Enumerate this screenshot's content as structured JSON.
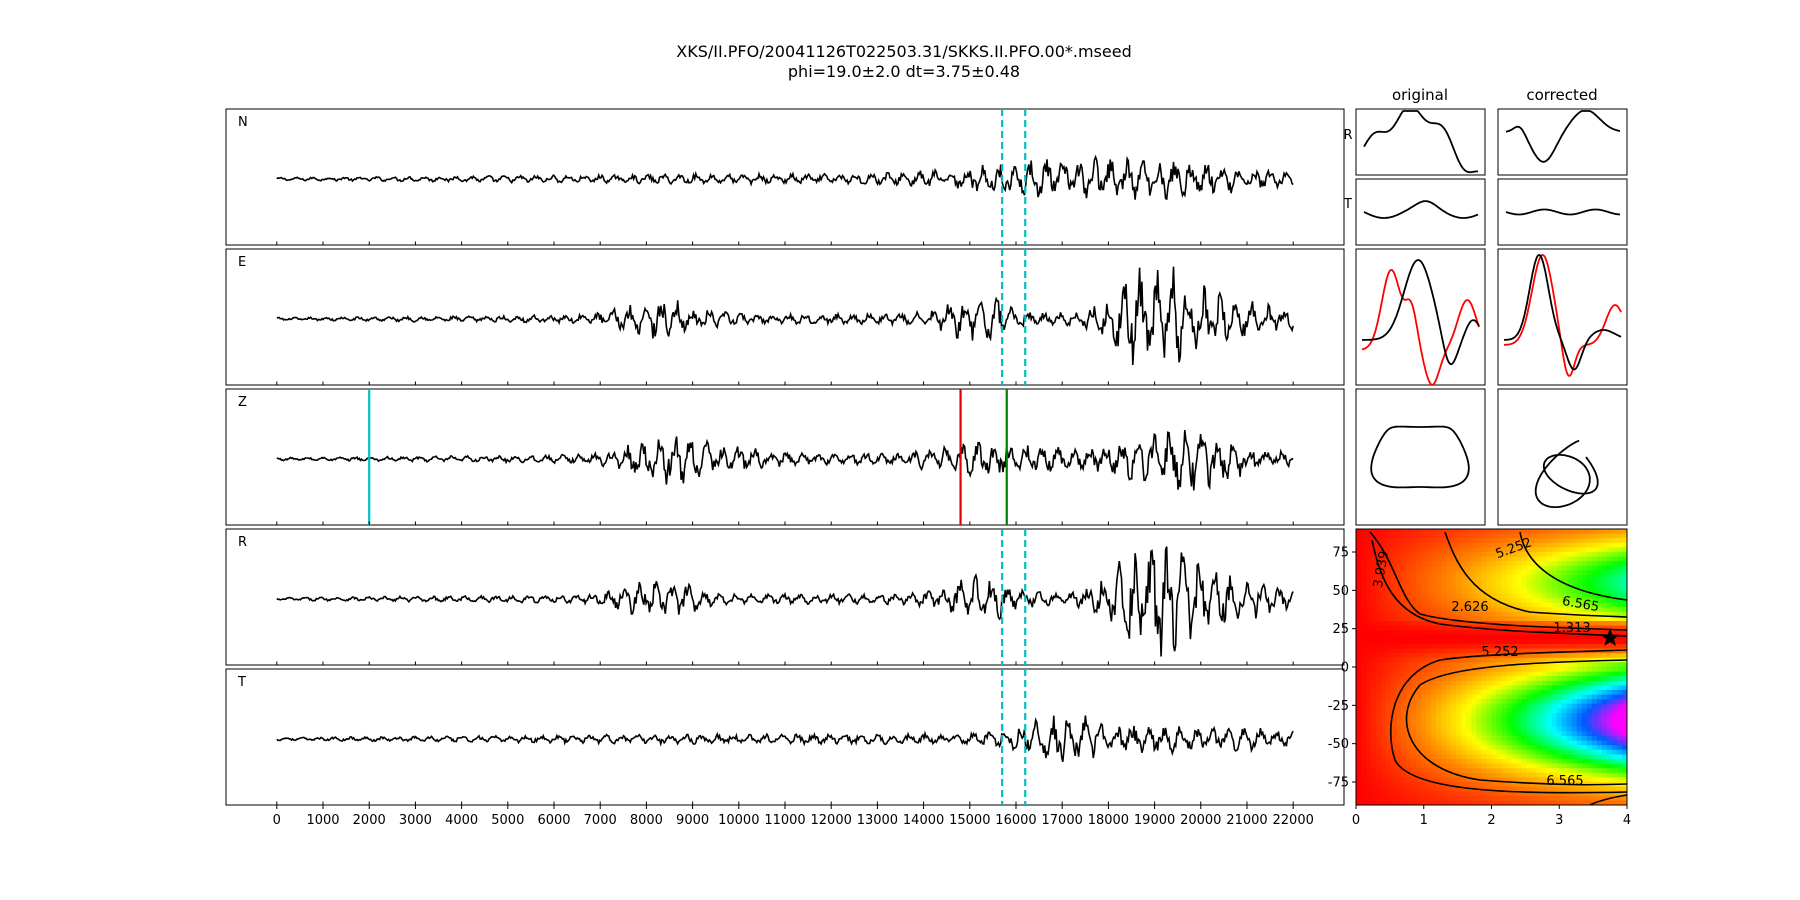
{
  "title": {
    "line1": "XKS/II.PFO/20041126T022503.31/SKKS.II.PFO.00*.mseed",
    "line2": "phi=19.0±2.0 dt=3.75±0.48"
  },
  "colors": {
    "trace": "#000000",
    "window_marker": "#00bfbf",
    "pick_cyan": "#00bfbf",
    "pick_red": "#e00000",
    "pick_green": "#007f00",
    "particle_red": "#ff0000",
    "contour_line": "#000000"
  },
  "chart_data": [
    {
      "type": "line",
      "panels": [
        "N",
        "E",
        "Z",
        "R",
        "T"
      ],
      "x_ticks": [
        0,
        1000,
        2000,
        3000,
        4000,
        5000,
        6000,
        7000,
        8000,
        9000,
        10000,
        11000,
        12000,
        13000,
        14000,
        15000,
        16000,
        17000,
        18000,
        19000,
        20000,
        21000,
        22000
      ],
      "xlim": [
        -1100,
        23100
      ],
      "trace_extent": [
        0,
        22000
      ],
      "window_markers": [
        15700,
        16200
      ],
      "z_picks": [
        {
          "x": 2000,
          "color": "#00bfbf"
        },
        {
          "x": 14800,
          "color": "#e00000"
        },
        {
          "x": 15800,
          "color": "#007f00"
        }
      ],
      "grid": false,
      "xlabel": "",
      "ylabel": ""
    },
    {
      "type": "line",
      "columns": [
        "original",
        "corrected"
      ],
      "rows": [
        "R",
        "T"
      ],
      "description_rows": [
        "R/T waveforms",
        "fast/slow overlay",
        "particle motion"
      ]
    },
    {
      "type": "heatmap",
      "x_ticks": [
        0,
        1,
        2,
        3,
        4
      ],
      "y_ticks": [
        75,
        50,
        25,
        0,
        -25,
        -50,
        -75
      ],
      "xlim": [
        0,
        4
      ],
      "ylim": [
        -90,
        90
      ],
      "contour_labels": [
        "5.252",
        "3.939",
        "6.565",
        "2.626",
        "1.313",
        "5.252",
        "6.565"
      ],
      "best_fit": {
        "dt": 3.75,
        "phi": 19.0
      },
      "colormap": "gist_rainbow_r",
      "xlabel": "",
      "ylabel": ""
    }
  ]
}
